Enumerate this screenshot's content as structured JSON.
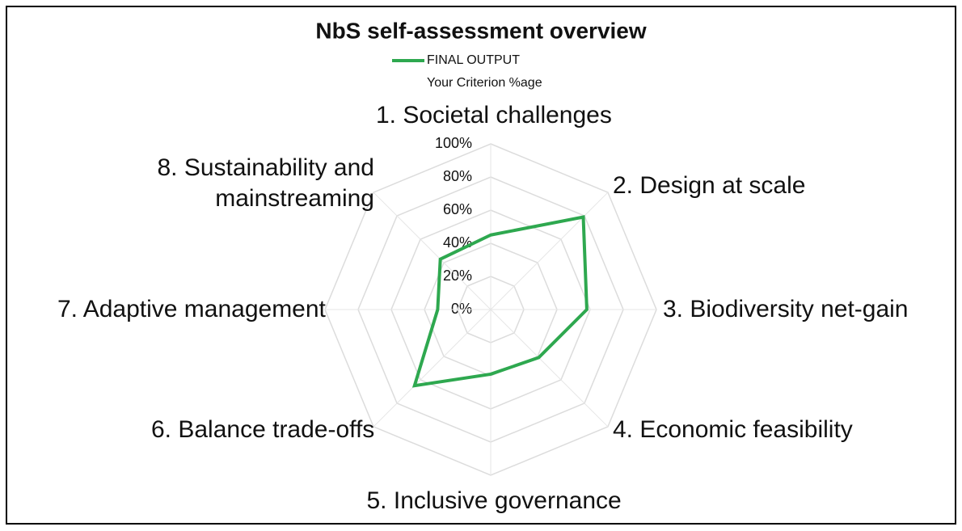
{
  "chart_data": {
    "type": "radar",
    "title": "NbS self-assessment overview",
    "subtitle": "Your Criterion %age",
    "categories": [
      "1. Societal challenges",
      "2. Design at scale",
      "3. Biodiversity net-gain",
      "4. Economic feasibility",
      "5. Inclusive governance",
      "6. Balance trade-offs",
      "7. Adaptive management",
      "8. Sustainability and mainstreaming"
    ],
    "series": [
      {
        "name": "FINAL OUTPUT",
        "color": "#2ea84f",
        "values": [
          45,
          79,
          58,
          41,
          39,
          65,
          32,
          43
        ]
      }
    ],
    "ylim": [
      0,
      100
    ],
    "yticks": [
      {
        "value": 0,
        "label": "0%"
      },
      {
        "value": 20,
        "label": "20%"
      },
      {
        "value": 40,
        "label": "40%"
      },
      {
        "value": 60,
        "label": "60%"
      },
      {
        "value": 80,
        "label": "80%"
      },
      {
        "value": 100,
        "label": "100%"
      }
    ],
    "grid": true,
    "legend": "top"
  }
}
